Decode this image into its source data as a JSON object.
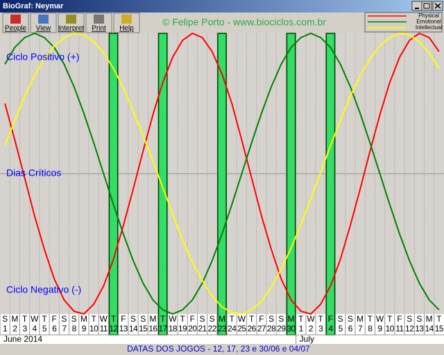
{
  "window": {
    "title": "BioGraf: Neymar"
  },
  "toolbar": [
    "People",
    "View",
    "Interpret",
    "Print",
    "Help"
  ],
  "watermark": "© Felipe Porto - www.biociclos.com.br",
  "footer": "DATAS DOS JOGOS - 12, 17, 23 e 30/06 e 04/07",
  "chart_data": {
    "type": "line",
    "annotations": [
      "Ciclo Positivo (+)",
      "Dias Críticos",
      "Ciclo Negativo (-)"
    ],
    "months": [
      "June 2014",
      "July"
    ],
    "weekdays": [
      "S",
      "M",
      "T",
      "W",
      "T",
      "F",
      "S",
      "S",
      "M",
      "T",
      "W",
      "T",
      "F",
      "S",
      "S",
      "M",
      "T",
      "W",
      "T",
      "F",
      "S",
      "S",
      "M",
      "T",
      "W",
      "T",
      "F",
      "S",
      "S",
      "M",
      "T",
      "W",
      "T",
      "F",
      "S",
      "S",
      "M",
      "T",
      "W",
      "T",
      "F",
      "S",
      "S",
      "M",
      "T"
    ],
    "categories": [
      "1",
      "2",
      "3",
      "4",
      "5",
      "6",
      "7",
      "8",
      "9",
      "10",
      "11",
      "12",
      "13",
      "14",
      "15",
      "16",
      "17",
      "18",
      "19",
      "20",
      "21",
      "22",
      "23",
      "24",
      "25",
      "26",
      "27",
      "28",
      "29",
      "30",
      "1",
      "2",
      "3",
      "4",
      "5",
      "6",
      "7",
      "8",
      "9",
      "10",
      "11",
      "12",
      "13",
      "14",
      "15"
    ],
    "highlight": [
      false,
      false,
      false,
      false,
      false,
      false,
      false,
      false,
      false,
      false,
      false,
      true,
      false,
      false,
      false,
      false,
      true,
      false,
      false,
      false,
      false,
      false,
      true,
      false,
      false,
      false,
      false,
      false,
      false,
      true,
      false,
      false,
      false,
      true,
      false,
      false,
      false,
      false,
      false,
      false,
      false,
      false,
      false,
      false,
      false
    ],
    "highlight_color": "#33dd66",
    "ylim": [
      -100,
      100
    ],
    "legend": "top-right",
    "series": [
      {
        "name": "Physical",
        "color": "#ff0000",
        "values": [
          50,
          24,
          -3,
          -30,
          -54,
          -75,
          -90,
          -98,
          -100,
          -93,
          -80,
          -61,
          -37,
          -11,
          16,
          42,
          65,
          83,
          95,
          100,
          97,
          87,
          71,
          50,
          24,
          -3,
          -30,
          -54,
          -75,
          -90,
          -98,
          -100,
          -93,
          -80,
          -61,
          -37,
          -11,
          16,
          42,
          65,
          83,
          95,
          100,
          97,
          87
        ]
      },
      {
        "name": "Emotional",
        "color": "#008000",
        "values": [
          78,
          90,
          97,
          100,
          97,
          90,
          78,
          62,
          43,
          22,
          0,
          -22,
          -43,
          -62,
          -78,
          -90,
          -97,
          -100,
          -97,
          -90,
          -78,
          -62,
          -43,
          -22,
          0,
          22,
          43,
          62,
          78,
          90,
          97,
          100,
          97,
          90,
          78,
          62,
          43,
          22,
          0,
          -22,
          -43,
          -62,
          -78,
          -90,
          -97
        ]
      },
      {
        "name": "Intellectual",
        "color": "#ffff00",
        "values": [
          20,
          38,
          55,
          70,
          82,
          91,
          97,
          100,
          99,
          94,
          86,
          75,
          61,
          45,
          27,
          9,
          -10,
          -29,
          -47,
          -63,
          -76,
          -87,
          -95,
          -99,
          -100,
          -97,
          -91,
          -81,
          -68,
          -53,
          -36,
          -18,
          1,
          20,
          38,
          55,
          70,
          82,
          91,
          97,
          100,
          99,
          94,
          86,
          75
        ]
      }
    ]
  }
}
